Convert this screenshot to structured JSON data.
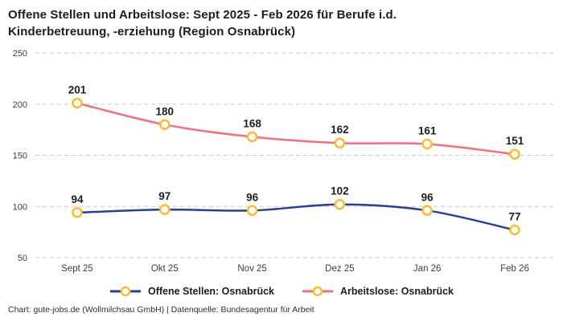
{
  "header": {
    "title_lines": [
      "Offene Stellen und Arbeitslose: Sept 2025 - Feb 2026 für Berufe i.d.",
      "Kinderbetreuung, -erziehung (Region Osnabrück)"
    ]
  },
  "chart_data": {
    "type": "line",
    "title": "Offene Stellen und Arbeitslose: Sept 2025 - Feb 2026 für Berufe i.d. Kinderbetreuung, -erziehung (Region Osnabrück)",
    "categories": [
      "Sept 25",
      "Okt 25",
      "Nov 25",
      "Dez 25",
      "Jan 26",
      "Feb 26"
    ],
    "series": [
      {
        "name": "Offene Stellen: Osnabrück",
        "color": "#243f9f",
        "values": [
          94,
          97,
          96,
          102,
          96,
          77
        ]
      },
      {
        "name": "Arbeitslose: Osnabrück",
        "color": "#fa6b80",
        "values": [
          201,
          180,
          168,
          162,
          161,
          151
        ]
      }
    ],
    "marker": {
      "shape": "circle",
      "stroke": "#fbbb2a",
      "fill": "#ffffff"
    },
    "ylim": [
      50,
      250
    ],
    "yticks": [
      50,
      100,
      150,
      200,
      250
    ],
    "grid": "horizontal-dashed",
    "grid_color": "#c9c9c9",
    "axis_color": "#3c3c3c",
    "label_color": "#1f1f1f",
    "legend_position": "bottom",
    "data_labels": true,
    "xlabel": "",
    "ylabel": ""
  },
  "footer": {
    "text": "Chart: gute-jobs.de (Wollmilchsau GmbH) | Datenquelle: Bundesagentur für Arbeit"
  }
}
